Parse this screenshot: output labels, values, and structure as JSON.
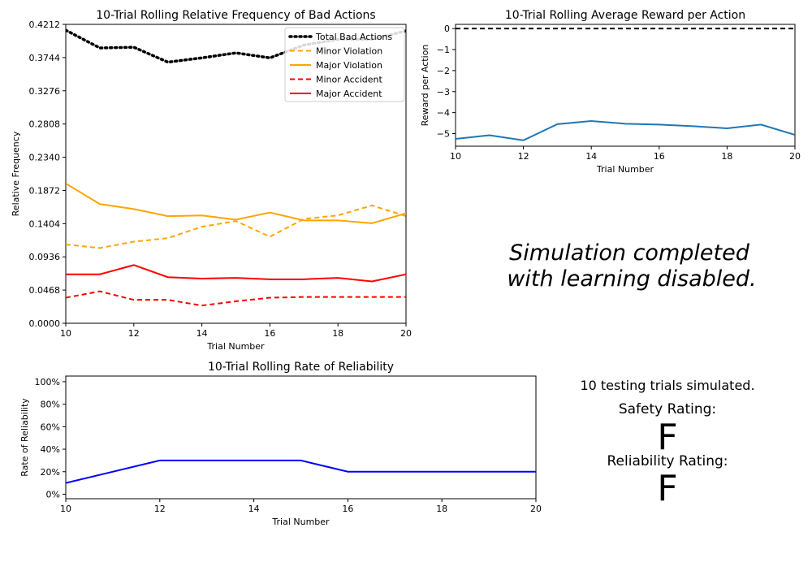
{
  "chart_data": [
    {
      "type": "line",
      "title": "10-Trial Rolling Relative Frequency of Bad Actions",
      "xlabel": "Trial Number",
      "ylabel": "Relative Frequency",
      "xlim": [
        10,
        20
      ],
      "ylim": [
        0,
        0.4212
      ],
      "xticks": [
        "10",
        "12",
        "14",
        "16",
        "18",
        "20"
      ],
      "yticks": [
        "0.0000",
        "0.0468",
        "0.0936",
        "0.1404",
        "0.1872",
        "0.2340",
        "0.2808",
        "0.3276",
        "0.3744",
        "0.4212"
      ],
      "legend_position": "top-right",
      "x": [
        10,
        11,
        12,
        13,
        14,
        15,
        16,
        17,
        18,
        19,
        20
      ],
      "series": [
        {
          "name": "Total Bad Actions",
          "color": "#000000",
          "dash": "dotted",
          "values": [
            0.413,
            0.388,
            0.389,
            0.368,
            0.374,
            0.381,
            0.374,
            0.392,
            0.4,
            0.4,
            0.412
          ]
        },
        {
          "name": "Minor Violation",
          "color": "#ffa500",
          "dash": "dashed",
          "values": [
            0.111,
            0.106,
            0.115,
            0.12,
            0.136,
            0.144,
            0.122,
            0.147,
            0.152,
            0.166,
            0.151
          ]
        },
        {
          "name": "Major Violation",
          "color": "#ffa500",
          "dash": "solid",
          "values": [
            0.197,
            0.168,
            0.161,
            0.151,
            0.152,
            0.146,
            0.156,
            0.145,
            0.145,
            0.141,
            0.155
          ]
        },
        {
          "name": "Minor Accident",
          "color": "#ff0000",
          "dash": "dashed",
          "values": [
            0.036,
            0.045,
            0.033,
            0.033,
            0.025,
            0.031,
            0.036,
            0.037,
            0.037,
            0.037,
            0.037
          ]
        },
        {
          "name": "Major Accident",
          "color": "#ff0000",
          "dash": "solid",
          "values": [
            0.069,
            0.069,
            0.082,
            0.065,
            0.063,
            0.064,
            0.062,
            0.062,
            0.064,
            0.059,
            0.069
          ]
        }
      ]
    },
    {
      "type": "line",
      "title": "10-Trial Rolling Average Reward per Action",
      "xlabel": "Trial Number",
      "ylabel": "Reward per Action",
      "xlim": [
        10,
        20
      ],
      "ylim": [
        -5.6,
        0.2
      ],
      "xticks": [
        "10",
        "12",
        "14",
        "16",
        "18",
        "20"
      ],
      "yticks": [
        "0",
        "−1",
        "−2",
        "−3",
        "−4",
        "−5"
      ],
      "reference_line": {
        "y": 0,
        "color": "#000000",
        "dash": "dashed"
      },
      "x": [
        10,
        11,
        12,
        13,
        14,
        15,
        16,
        17,
        18,
        19,
        20
      ],
      "series": [
        {
          "color": "#1f77b4",
          "dash": "solid",
          "values": [
            -5.25,
            -5.08,
            -5.32,
            -4.55,
            -4.4,
            -4.53,
            -4.57,
            -4.65,
            -4.75,
            -4.57,
            -5.06
          ]
        }
      ]
    },
    {
      "type": "line",
      "title": "10-Trial Rolling Rate of Reliability",
      "xlabel": "Trial Number",
      "ylabel": "Rate of Reliability",
      "xlim": [
        10,
        20
      ],
      "ylim": [
        -0.04,
        1.05
      ],
      "xticks": [
        "10",
        "12",
        "14",
        "16",
        "18",
        "20"
      ],
      "yticks": [
        "0%",
        "20%",
        "40%",
        "60%",
        "80%",
        "100%"
      ],
      "x": [
        10,
        12,
        15,
        16,
        20
      ],
      "series": [
        {
          "color": "#0000ff",
          "dash": "solid",
          "values": [
            0.1,
            0.3,
            0.3,
            0.2,
            0.2
          ]
        }
      ]
    }
  ],
  "info": {
    "message_line1": "Simulation completed",
    "message_line2": "with learning disabled.",
    "trials_text": "10 testing trials simulated.",
    "safety_label": "Safety Rating:",
    "safety_grade": "F",
    "reliability_label": "Reliability Rating:",
    "reliability_grade": "F",
    "grade_color": "#ff0000"
  }
}
